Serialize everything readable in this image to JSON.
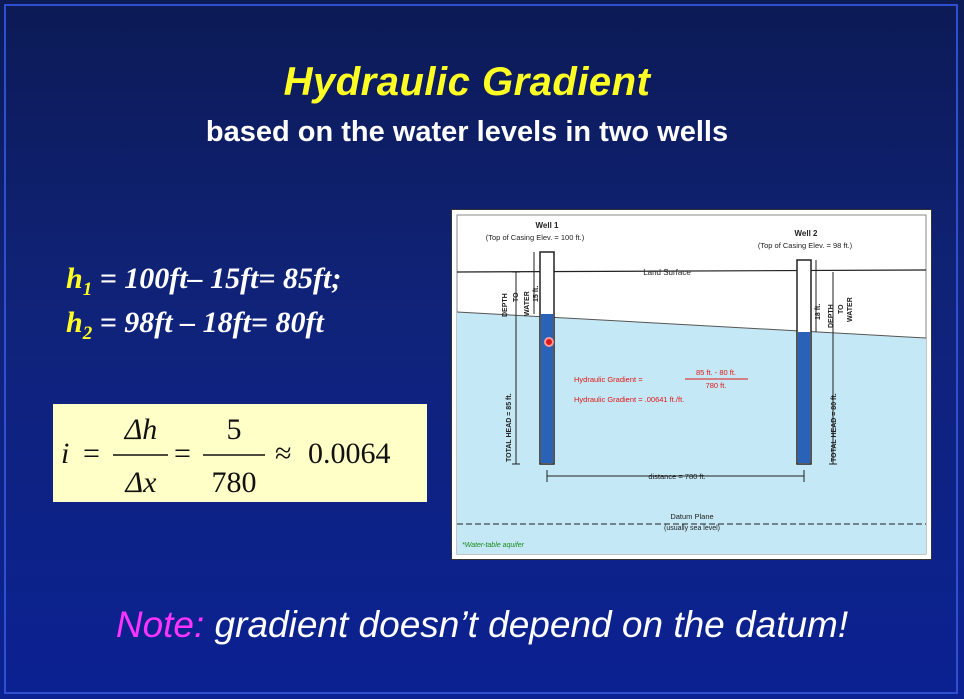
{
  "title": "Hydraulic Gradient",
  "subtitle": "based on the water levels in two wells",
  "equations": {
    "h1": {
      "var": "h",
      "sub": "1",
      "rhs": " = 100ft– 15ft= 85ft;"
    },
    "h2": {
      "var": "h",
      "sub": "2",
      "rhs": " = 98ft – 18ft= 80ft"
    }
  },
  "formula": {
    "lhs": "i",
    "eq": "=",
    "num1": "Δh",
    "den1": "Δx",
    "num2": "5",
    "den2": "780",
    "approx": "≈",
    "result": "0.0064"
  },
  "figure": {
    "well1_label": "Well 1",
    "well1_casing": "(Top of Casing Elev. = 100 ft.)",
    "well2_label": "Well 2",
    "well2_casing": "(Top of Casing Elev. = 98 ft.)",
    "land_surface": "Land Surface",
    "depth_word": "DEPTH",
    "to_word": "TO",
    "water_word": "WATER",
    "well1_depth": "15 ft.",
    "well2_depth": "18 ft.",
    "well1_head": "TOTAL HEAD = 85 ft.",
    "well2_head": "TOTAL HEAD = 80 ft.",
    "gradient_label_1": "Hydraulic Gradient =",
    "gradient_num": "85 ft. - 80 ft.",
    "gradient_den": "780 ft.",
    "gradient_label_2": "Hydraulic Gradient = .00641 ft./ft.",
    "distance": "distance = 780 ft.",
    "datum_plane": "Datum Plane",
    "datum_note": "(usually sea level)",
    "aquifer_note": "*Water-table aquifer",
    "colors": {
      "water": "#c4e8f5",
      "well_water": "#2a62b8",
      "gradient_text": "#e01818"
    }
  },
  "note": {
    "prefix": "Note:",
    "text": " gradient doesn’t depend on the datum!"
  }
}
